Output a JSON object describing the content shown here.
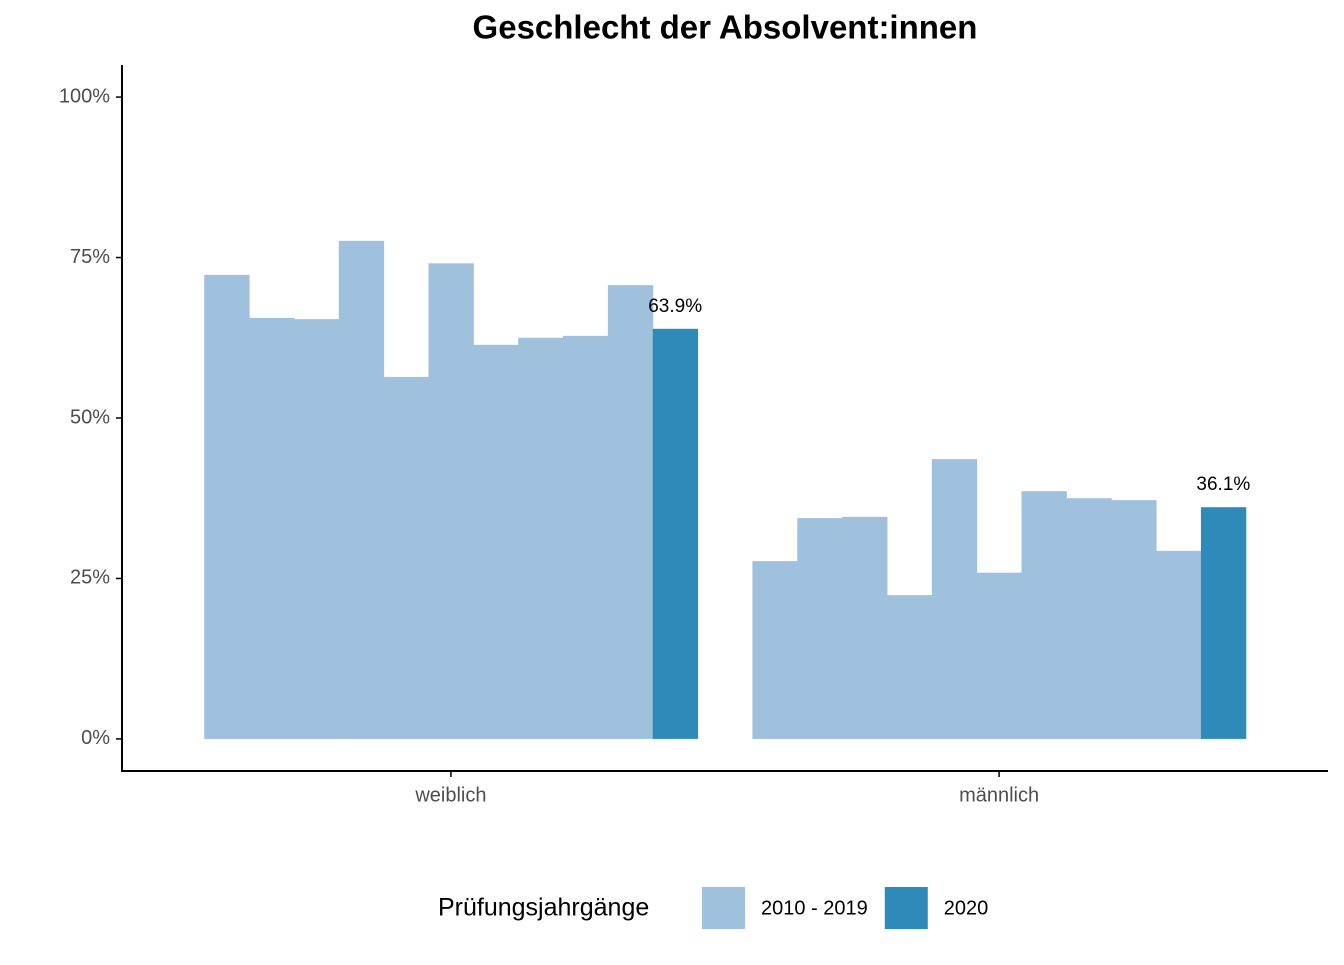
{
  "chart_data": {
    "type": "bar",
    "title": "Geschlecht der Absolvent:innen",
    "categories": [
      "weiblich",
      "männlich"
    ],
    "legend_title": "Prüfungsjahrgänge",
    "series": [
      {
        "name": "2010 - 2019",
        "color": "#a0c1de",
        "values": [
          [
            72.3,
            65.6,
            65.4,
            77.6,
            56.4,
            74.1,
            61.4,
            62.5,
            62.8,
            70.7
          ],
          [
            27.7,
            34.4,
            34.6,
            22.4,
            43.6,
            25.9,
            38.6,
            37.5,
            37.2,
            29.3
          ]
        ]
      },
      {
        "name": "2020",
        "color": "#2e8ab8",
        "values": [
          63.9,
          36.1
        ],
        "value_labels": [
          "63.9%",
          "36.1%"
        ]
      }
    ],
    "ylim": [
      -5,
      105
    ],
    "yticks": [
      {
        "value": 0,
        "label": "0%"
      },
      {
        "value": 25,
        "label": "25%"
      },
      {
        "value": 50,
        "label": "50%"
      },
      {
        "value": 75,
        "label": "75%"
      },
      {
        "value": 100,
        "label": "100%"
      }
    ],
    "legend_position": "bottom"
  }
}
